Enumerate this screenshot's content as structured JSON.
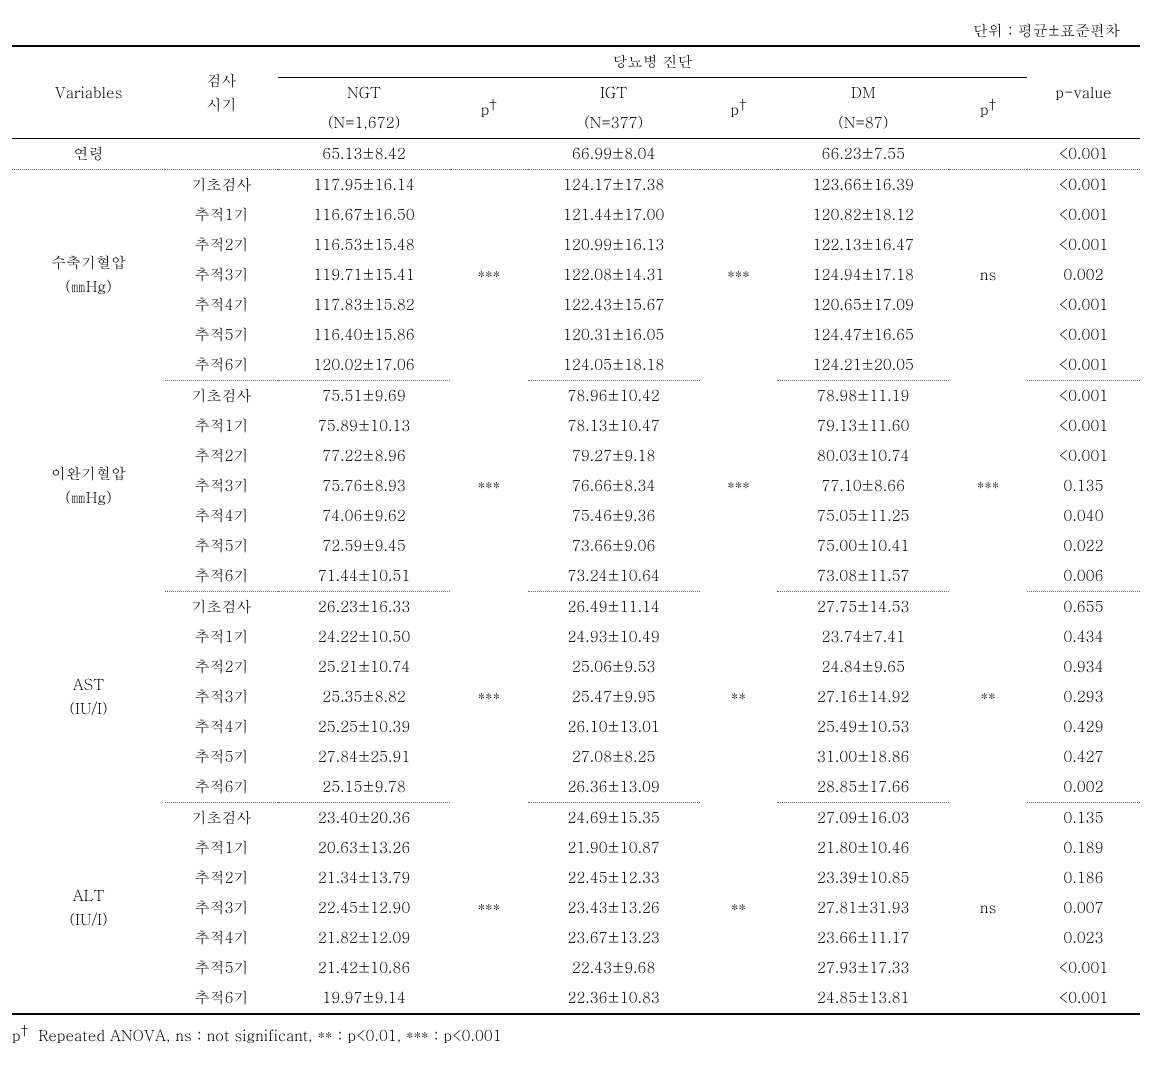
{
  "unit_label": "단위 : 평균±표준편차",
  "headers": {
    "variables": "Variables",
    "timing": "검사\n시기",
    "diagnosis": "당뇨병 진단",
    "ngt": "NGT",
    "ngt_n": "(N=1,672)",
    "igt": "IGT",
    "igt_n": "(N=377)",
    "dm": "DM",
    "dm_n": "(N=87)",
    "p_dagger": "p",
    "pvalue": "p-value"
  },
  "groups": [
    {
      "name": "연령",
      "single": true,
      "ngt": "65.13±8.42",
      "igt": "66.99±8.04",
      "dm": "66.23±7.55",
      "p1": "",
      "p2": "",
      "p3": "",
      "pval": "<0.001"
    },
    {
      "name": "수축기혈압\n(㎜Hg)",
      "p1": "***",
      "p2": "***",
      "p3": "ns",
      "rows": [
        {
          "timing": "기초검사",
          "ngt": "117.95±16.14",
          "igt": "124.17±17.38",
          "dm": "123.66±16.39",
          "pval": "<0.001"
        },
        {
          "timing": "추적1기",
          "ngt": "116.67±16.50",
          "igt": "121.44±17.00",
          "dm": "120.82±18.12",
          "pval": "<0.001"
        },
        {
          "timing": "추적2기",
          "ngt": "116.53±15.48",
          "igt": "120.99±16.13",
          "dm": "122.13±16.47",
          "pval": "<0.001"
        },
        {
          "timing": "추적3기",
          "ngt": "119.71±15.41",
          "igt": "122.08±14.31",
          "dm": "124.94±17.18",
          "pval": "0.002"
        },
        {
          "timing": "추적4기",
          "ngt": "117.83±15.82",
          "igt": "122.43±15.67",
          "dm": "120.65±17.09",
          "pval": "<0.001"
        },
        {
          "timing": "추적5기",
          "ngt": "116.40±15.86",
          "igt": "120.31±16.05",
          "dm": "124.47±16.65",
          "pval": "<0.001"
        },
        {
          "timing": "추적6기",
          "ngt": "120.02±17.06",
          "igt": "124.05±18.18",
          "dm": "124.21±20.05",
          "pval": "<0.001"
        }
      ]
    },
    {
      "name": "이완기혈압\n(㎜Hg)",
      "p1": "***",
      "p2": "***",
      "p3": "***",
      "rows": [
        {
          "timing": "기초검사",
          "ngt": "75.51±9.69",
          "igt": "78.96±10.42",
          "dm": "78.98±11.19",
          "pval": "<0.001"
        },
        {
          "timing": "추적1기",
          "ngt": "75.89±10.13",
          "igt": "78.13±10.47",
          "dm": "79.13±11.60",
          "pval": "<0.001"
        },
        {
          "timing": "추적2기",
          "ngt": "77.22±8.96",
          "igt": "79.27±9.18",
          "dm": "80.03±10.74",
          "pval": "<0.001"
        },
        {
          "timing": "추적3기",
          "ngt": "75.76±8.93",
          "igt": "76.66±8.34",
          "dm": "77.10±8.66",
          "pval": "0.135"
        },
        {
          "timing": "추적4기",
          "ngt": "74.06±9.62",
          "igt": "75.46±9.36",
          "dm": "75.05±11.25",
          "pval": "0.040"
        },
        {
          "timing": "추적5기",
          "ngt": "72.59±9.45",
          "igt": "73.66±9.06",
          "dm": "75.00±10.41",
          "pval": "0.022"
        },
        {
          "timing": "추적6기",
          "ngt": "71.44±10.51",
          "igt": "73.24±10.64",
          "dm": "73.08±11.57",
          "pval": "0.006"
        }
      ]
    },
    {
      "name": "AST\n(IU/I)",
      "p1": "***",
      "p2": "**",
      "p3": "**",
      "rows": [
        {
          "timing": "기초검사",
          "ngt": "26.23±16.33",
          "igt": "26.49±11.14",
          "dm": "27.75±14.53",
          "pval": "0.655"
        },
        {
          "timing": "추적1기",
          "ngt": "24.22±10.50",
          "igt": "24.93±10.49",
          "dm": "23.74±7.41",
          "pval": "0.434"
        },
        {
          "timing": "추적2기",
          "ngt": "25.21±10.74",
          "igt": "25.06±9.53",
          "dm": "24.84±9.65",
          "pval": "0.934"
        },
        {
          "timing": "추적3기",
          "ngt": "25.35±8.82",
          "igt": "25.47±9.95",
          "dm": "27.16±14.92",
          "pval": "0.293"
        },
        {
          "timing": "추적4기",
          "ngt": "25.25±10.39",
          "igt": "26.10±13.01",
          "dm": "25.49±10.53",
          "pval": "0.429"
        },
        {
          "timing": "추적5기",
          "ngt": "27.84±25.91",
          "igt": "27.08±8.25",
          "dm": "31.00±18.86",
          "pval": "0.427"
        },
        {
          "timing": "추적6기",
          "ngt": "25.15±9.78",
          "igt": "26.36±13.09",
          "dm": "28.85±17.66",
          "pval": "0.002"
        }
      ]
    },
    {
      "name": "ALT\n(IU/I)",
      "p1": "***",
      "p2": "**",
      "p3": "ns",
      "rows": [
        {
          "timing": "기초검사",
          "ngt": "23.40±20.36",
          "igt": "24.69±15.35",
          "dm": "27.09±16.03",
          "pval": "0.135"
        },
        {
          "timing": "추적1기",
          "ngt": "20.63±13.26",
          "igt": "21.90±10.87",
          "dm": "21.80±10.46",
          "pval": "0.189"
        },
        {
          "timing": "추적2기",
          "ngt": "21.34±13.79",
          "igt": "22.45±12.33",
          "dm": "23.39±10.85",
          "pval": "0.186"
        },
        {
          "timing": "추적3기",
          "ngt": "22.45±12.90",
          "igt": "23.43±13.26",
          "dm": "27.81±31.93",
          "pval": "0.007"
        },
        {
          "timing": "추적4기",
          "ngt": "21.82±12.09",
          "igt": "23.67±13.23",
          "dm": "23.66±11.17",
          "pval": "0.023"
        },
        {
          "timing": "추적5기",
          "ngt": "21.42±10.86",
          "igt": "22.43±9.68",
          "dm": "27.93±17.33",
          "pval": "<0.001"
        },
        {
          "timing": "추적6기",
          "ngt": "19.97±9.14",
          "igt": "22.36±10.83",
          "dm": "24.85±13.81",
          "pval": "<0.001"
        }
      ]
    }
  ],
  "footnote": "p† Repeated ANOVA, ns : not significant, ** : p<0.01, *** : p<0.001",
  "styling": {
    "font_family": "Batang / Times New Roman serif",
    "font_size_pt": 11,
    "text_color": "#000000",
    "background_color": "#ffffff",
    "top_rule_weight": 2,
    "header_sub_rule_weight": 1,
    "group_separator": "dotted",
    "bottom_rule_weight": 2
  }
}
